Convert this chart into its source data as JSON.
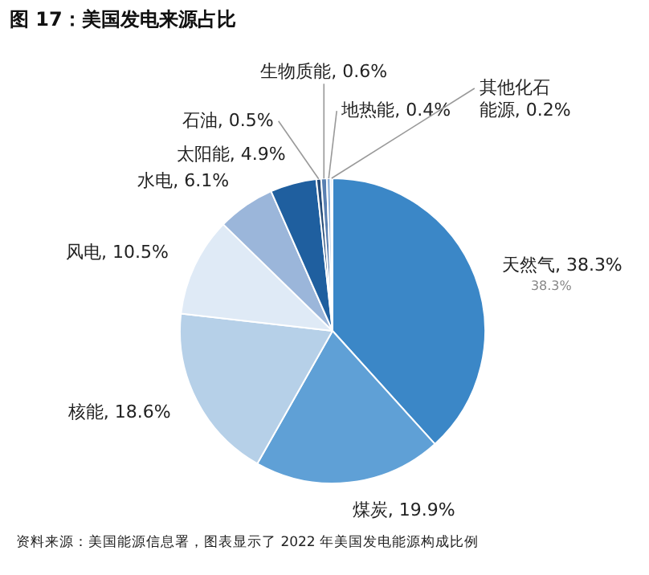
{
  "chart_data": {
    "type": "pie",
    "title": "图 17：美国发电来源占比",
    "categories": [
      "天然气",
      "煤炭",
      "核能",
      "风电",
      "水电",
      "太阳能",
      "石油",
      "生物质能",
      "地热能",
      "其他化石能源"
    ],
    "values": [
      38.3,
      19.9,
      18.6,
      10.5,
      6.1,
      4.9,
      0.5,
      0.6,
      0.4,
      0.2
    ],
    "value_labels": [
      "38.3%",
      "19.9%",
      "18.6%",
      "10.5%",
      "6.1%",
      "4.9%",
      "0.5%",
      "0.6%",
      "0.4%",
      "0.2%"
    ],
    "colors": [
      "#3b87c7",
      "#5fa0d6",
      "#b6d0e8",
      "#dfeaf6",
      "#9bb6da",
      "#1f5f9f",
      "#274d7a",
      "#5a80b2",
      "#8eb0d8",
      "#c6d7ec"
    ],
    "legend": false,
    "annotations": [
      {
        "text": "38.3%",
        "x": "天然气"
      },
      "资料来源：美国能源信息署，图表显示了 2022 年美国发电能源构成比例"
    ]
  }
}
